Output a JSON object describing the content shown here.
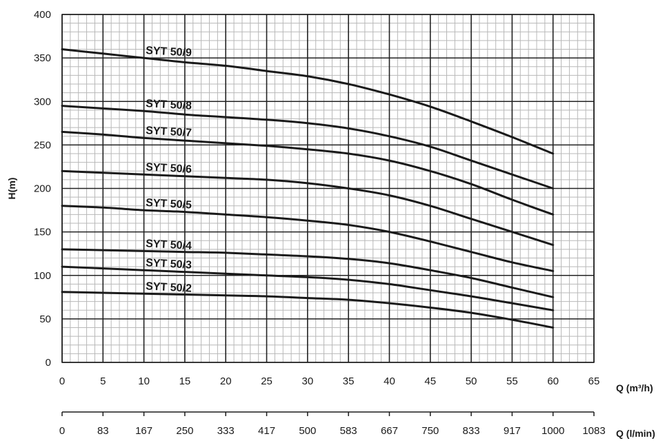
{
  "chart_data": {
    "type": "line",
    "xlabel": "Q (m³/h)",
    "x2label": "Q (l/min)",
    "ylabel": "H(m)",
    "xlim": [
      0,
      65
    ],
    "ylim": [
      0,
      400
    ],
    "x_ticks": [
      "0",
      "5",
      "10",
      "15",
      "20",
      "25",
      "30",
      "35",
      "40",
      "45",
      "50",
      "55",
      "60",
      "65"
    ],
    "x2_ticks": [
      "0",
      "83",
      "167",
      "250",
      "333",
      "417",
      "500",
      "583",
      "667",
      "750",
      "833",
      "917",
      "1000",
      "1083"
    ],
    "y_ticks": [
      "0",
      "50",
      "100",
      "150",
      "200",
      "250",
      "300",
      "350",
      "400"
    ],
    "grid": true,
    "series": [
      {
        "name": "SYT 50/9",
        "x": [
          0,
          5,
          10,
          15,
          20,
          25,
          30,
          35,
          40,
          45,
          50,
          55,
          60
        ],
        "y": [
          360,
          355,
          350,
          345,
          341,
          335,
          329,
          320,
          308,
          294,
          277,
          259,
          240
        ]
      },
      {
        "name": "SYT 50/8",
        "x": [
          0,
          5,
          10,
          15,
          20,
          25,
          30,
          35,
          40,
          45,
          50,
          55,
          60
        ],
        "y": [
          295,
          292,
          289,
          285,
          282,
          279,
          275,
          269,
          260,
          248,
          232,
          216,
          200
        ]
      },
      {
        "name": "SYT 50/7",
        "x": [
          0,
          5,
          10,
          15,
          20,
          25,
          30,
          35,
          40,
          45,
          50,
          55,
          60
        ],
        "y": [
          265,
          262,
          258,
          255,
          252,
          249,
          245,
          240,
          232,
          220,
          205,
          187,
          170
        ]
      },
      {
        "name": "SYT 50/6",
        "x": [
          0,
          5,
          10,
          15,
          20,
          25,
          30,
          35,
          40,
          45,
          50,
          55,
          60
        ],
        "y": [
          220,
          218,
          216,
          214,
          212,
          210,
          206,
          200,
          192,
          180,
          165,
          150,
          135
        ]
      },
      {
        "name": "SYT 50/5",
        "x": [
          0,
          5,
          10,
          15,
          20,
          25,
          30,
          35,
          40,
          45,
          50,
          55,
          60
        ],
        "y": [
          180,
          178,
          175,
          173,
          170,
          167,
          163,
          158,
          150,
          139,
          127,
          115,
          105
        ]
      },
      {
        "name": "SYT 50/4",
        "x": [
          0,
          5,
          10,
          15,
          20,
          25,
          30,
          35,
          40,
          45,
          50,
          55,
          60
        ],
        "y": [
          130,
          129,
          128,
          127,
          126,
          124,
          122,
          119,
          114,
          106,
          97,
          86,
          75
        ]
      },
      {
        "name": "SYT 50/3",
        "x": [
          0,
          5,
          10,
          15,
          20,
          25,
          30,
          35,
          40,
          45,
          50,
          55,
          60
        ],
        "y": [
          110,
          108,
          106,
          104,
          102,
          100,
          98,
          95,
          90,
          83,
          76,
          68,
          60
        ]
      },
      {
        "name": "SYT 50/2",
        "x": [
          0,
          5,
          10,
          15,
          20,
          25,
          30,
          35,
          40,
          45,
          50,
          55,
          60
        ],
        "y": [
          81,
          80,
          79,
          78,
          77,
          76,
          74,
          72,
          68,
          63,
          57,
          49,
          40
        ]
      }
    ]
  }
}
